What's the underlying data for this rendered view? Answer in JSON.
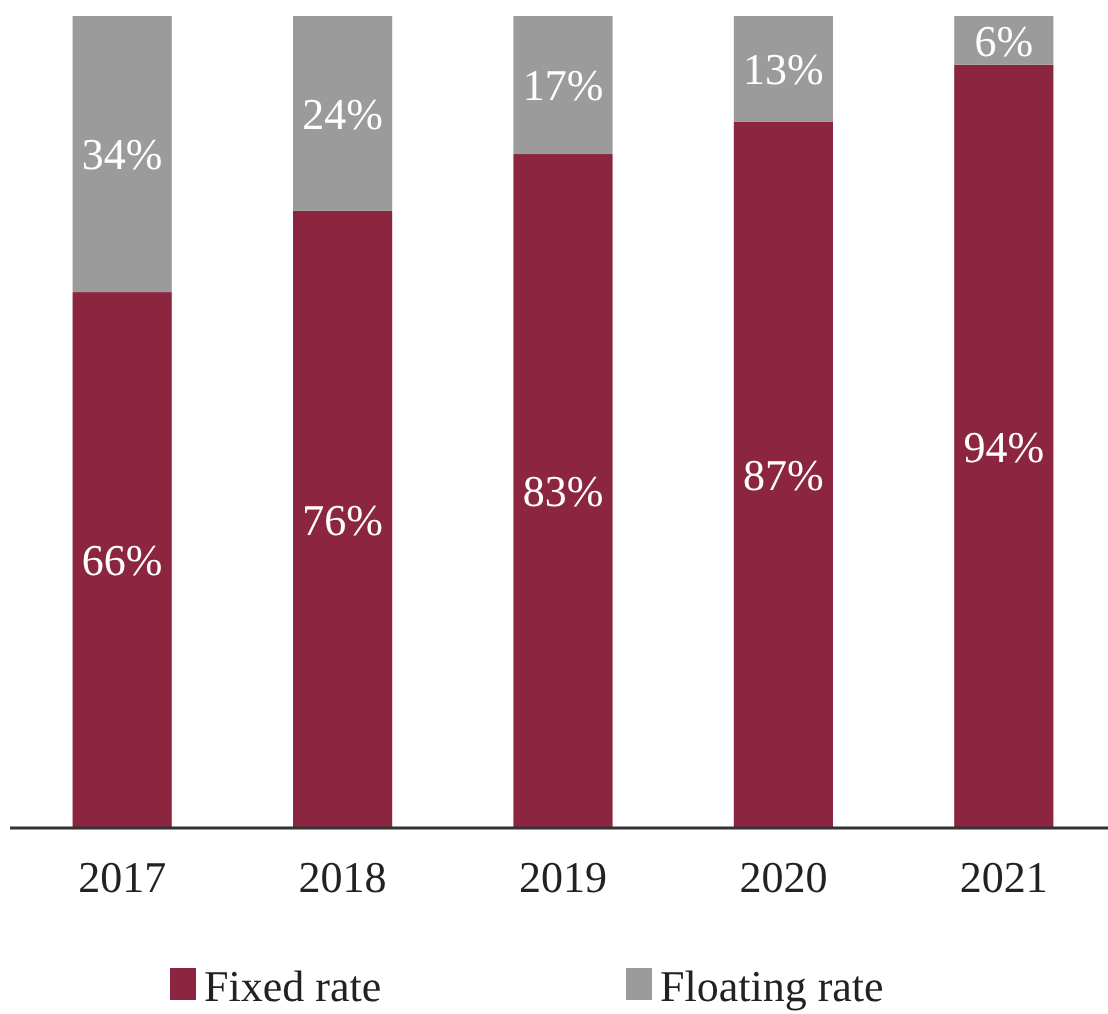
{
  "chart_data": {
    "type": "bar",
    "stacked": true,
    "categories": [
      "2017",
      "2018",
      "2019",
      "2020",
      "2021"
    ],
    "series": [
      {
        "name": "Fixed rate",
        "color": "#8b2540",
        "values": [
          66,
          76,
          83,
          87,
          94
        ],
        "value_labels": [
          "66%",
          "76%",
          "83%",
          "87%",
          "94%"
        ]
      },
      {
        "name": "Floating rate",
        "color": "#9b9b9b",
        "values": [
          34,
          24,
          17,
          13,
          6
        ],
        "value_labels": [
          "34%",
          "24%",
          "17%",
          "13%",
          "6%"
        ]
      }
    ],
    "legend": "bottom",
    "tick_labels": "x"
  }
}
